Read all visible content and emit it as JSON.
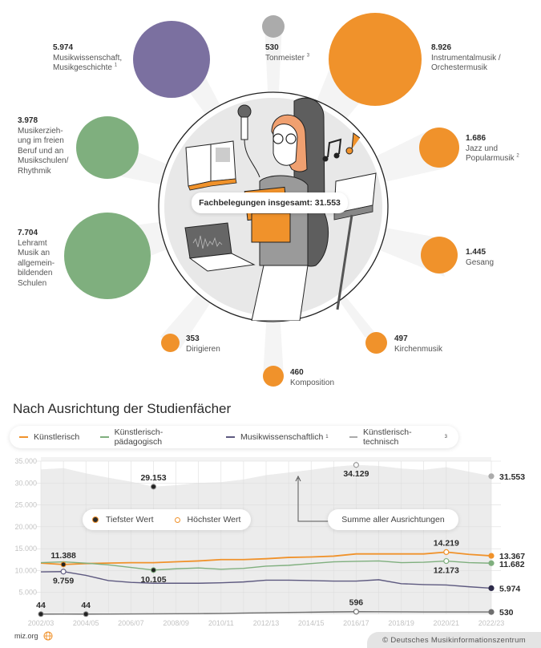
{
  "colors": {
    "orange": "#F0922B",
    "purple": "#7B70A0",
    "green": "#7FAF7E",
    "grey": "#ABABAB",
    "dark_line": "#5E5A80",
    "area": "#EDEDED"
  },
  "header": {
    "total_label": "Fachbelegungen insgesamt: 31.553"
  },
  "bubbles": [
    {
      "value": "5.974",
      "label": "Musikwissenschaft,\nMusikgeschichte",
      "footnote": "1",
      "color": "#7B70A0"
    },
    {
      "value": "530",
      "label": "Tonmeister",
      "footnote": "3",
      "color": "#ABABAB"
    },
    {
      "value": "8.926",
      "label": "Instrumentalmusik /\nOrchestermusik",
      "footnote": "",
      "color": "#F0922B"
    },
    {
      "value": "3.978",
      "label": "Musikerzieh-\nung im freien\nBeruf und an\nMusikschulen/\nRhythmik",
      "footnote": "",
      "color": "#7FAF7E"
    },
    {
      "value": "1.686",
      "label": "Jazz und\nPopularmusik",
      "footnote": "2",
      "color": "#F0922B"
    },
    {
      "value": "7.704",
      "label": "Lehramt\nMusik an\nallgemein-\nbildenden\nSchulen",
      "footnote": "",
      "color": "#7FAF7E"
    },
    {
      "value": "1.445",
      "label": "Gesang",
      "footnote": "",
      "color": "#F0922B"
    },
    {
      "value": "353",
      "label": "Dirigieren",
      "footnote": "",
      "color": "#F0922B"
    },
    {
      "value": "497",
      "label": "Kirchenmusik",
      "footnote": "",
      "color": "#F0922B"
    },
    {
      "value": "460",
      "label": "Komposition",
      "footnote": "",
      "color": "#F0922B"
    }
  ],
  "section": {
    "title": "Nach Ausrichtung der Studienfächer"
  },
  "legend": {
    "items": [
      {
        "label": "Künstlerisch",
        "footnote": "",
        "color": "#F0922B"
      },
      {
        "label": "Künstlerisch-pädagogisch",
        "footnote": "",
        "color": "#7FAF7E"
      },
      {
        "label": "Musikwissenschaftlich",
        "footnote": "1",
        "color": "#5E5A80"
      },
      {
        "label": "Künstlerisch-technisch",
        "footnote": "3",
        "color": "#ABABAB"
      }
    ],
    "min_label": "Tiefster Wert",
    "max_label": "Höchster Wert",
    "sum_label": "Summe aller Ausrichtungen"
  },
  "chart_data": [
    {
      "type": "bubble",
      "title": "Fachbelegungen insgesamt: 31.553",
      "categories": [
        "Musikwissenschaft, Musikgeschichte",
        "Tonmeister",
        "Instrumentalmusik / Orchestermusik",
        "Musikerziehung im freien Beruf und an Musikschulen/Rhythmik",
        "Jazz und Popularmusik",
        "Lehramt Musik an allgemeinbildenden Schulen",
        "Gesang",
        "Dirigieren",
        "Kirchenmusik",
        "Komposition"
      ],
      "values": [
        5974,
        530,
        8926,
        3978,
        1686,
        7704,
        1445,
        353,
        497,
        460
      ],
      "total": 31553
    },
    {
      "type": "line",
      "title": "Nach Ausrichtung der Studienfächer",
      "xlabel": "",
      "ylabel": "",
      "ylim": [
        0,
        35000
      ],
      "yticks": [
        "5.000",
        "10.000",
        "15.000",
        "20.000",
        "25.000",
        "30.000",
        "35.000"
      ],
      "xticks": [
        "2002/03",
        "2004/05",
        "2006/07",
        "2008/09",
        "2010/11",
        "2012/13",
        "2014/15",
        "2016/17",
        "2018/19",
        "2020/21",
        "2022/23"
      ],
      "grid": true,
      "x": [
        "2002/03",
        "2003/04",
        "2004/05",
        "2005/06",
        "2006/07",
        "2007/08",
        "2008/09",
        "2009/10",
        "2010/11",
        "2011/12",
        "2012/13",
        "2013/14",
        "2014/15",
        "2015/16",
        "2016/17",
        "2017/18",
        "2018/19",
        "2019/20",
        "2020/21",
        "2021/22",
        "2022/23"
      ],
      "series": [
        {
          "name": "Summe aller Ausrichtungen",
          "values": [
            33100,
            33400,
            32200,
            31200,
            30300,
            29153,
            29500,
            30000,
            30200,
            30800,
            31800,
            32400,
            33000,
            33700,
            34129,
            33900,
            33300,
            33000,
            33600,
            32600,
            31553
          ]
        },
        {
          "name": "Künstlerisch",
          "values": [
            11700,
            11388,
            11600,
            11700,
            11800,
            11800,
            12000,
            12200,
            12500,
            12500,
            12700,
            13000,
            13100,
            13300,
            13800,
            13800,
            13800,
            13800,
            14219,
            13700,
            13367
          ]
        },
        {
          "name": "Künstlerisch-pädagogisch",
          "values": [
            11800,
            12000,
            11700,
            11300,
            10700,
            10105,
            10400,
            10600,
            10300,
            10500,
            11000,
            11200,
            11600,
            12000,
            12100,
            12200,
            11800,
            11900,
            12173,
            11800,
            11682
          ]
        },
        {
          "name": "Musikwissenschaftlich",
          "values": [
            9700,
            9759,
            8900,
            7700,
            7300,
            7100,
            7100,
            7100,
            7200,
            7400,
            7800,
            7800,
            7700,
            7600,
            7600,
            7900,
            7000,
            6800,
            6700,
            6300,
            5974
          ]
        },
        {
          "name": "Künstlerisch-technisch",
          "values": [
            44,
            50,
            44,
            60,
            80,
            100,
            120,
            150,
            200,
            280,
            350,
            420,
            480,
            550,
            596,
            590,
            560,
            540,
            540,
            535,
            530
          ]
        }
      ],
      "annotations": [
        {
          "series": "Summe aller Ausrichtungen",
          "type": "min",
          "x": "2007/08",
          "value": "29.153"
        },
        {
          "series": "Summe aller Ausrichtungen",
          "type": "max",
          "x": "2016/17",
          "value": "34.129"
        },
        {
          "series": "Summe aller Ausrichtungen",
          "type": "last",
          "x": "2022/23",
          "value": "31.553"
        },
        {
          "series": "Künstlerisch",
          "type": "min",
          "x": "2003/04",
          "value": "11.388"
        },
        {
          "series": "Künstlerisch",
          "type": "max",
          "x": "2020/21",
          "value": "14.219"
        },
        {
          "series": "Künstlerisch",
          "type": "last",
          "x": "2022/23",
          "value": "13.367"
        },
        {
          "series": "Künstlerisch-pädagogisch",
          "type": "min",
          "x": "2007/08",
          "value": "10.105"
        },
        {
          "series": "Künstlerisch-pädagogisch",
          "type": "max",
          "x": "2020/21",
          "value": "12.173"
        },
        {
          "series": "Künstlerisch-pädagogisch",
          "type": "last",
          "x": "2022/23",
          "value": "11.682"
        },
        {
          "series": "Musikwissenschaftlich",
          "type": "max",
          "x": "2003/04",
          "value": "9.759"
        },
        {
          "series": "Musikwissenschaftlich",
          "type": "last",
          "x": "2022/23",
          "value": "5.974"
        },
        {
          "series": "Künstlerisch-technisch",
          "type": "min",
          "x": "2002/03",
          "value": "44"
        },
        {
          "series": "Künstlerisch-technisch",
          "type": "min",
          "x": "2004/05",
          "value": "44"
        },
        {
          "series": "Künstlerisch-technisch",
          "type": "max",
          "x": "2016/17",
          "value": "596"
        },
        {
          "series": "Künstlerisch-technisch",
          "type": "last",
          "x": "2022/23",
          "value": "530"
        }
      ],
      "legend_position": "top"
    }
  ],
  "footer": {
    "site": "miz.org",
    "copyright": "© Deutsches Musikinformationszentrum"
  }
}
